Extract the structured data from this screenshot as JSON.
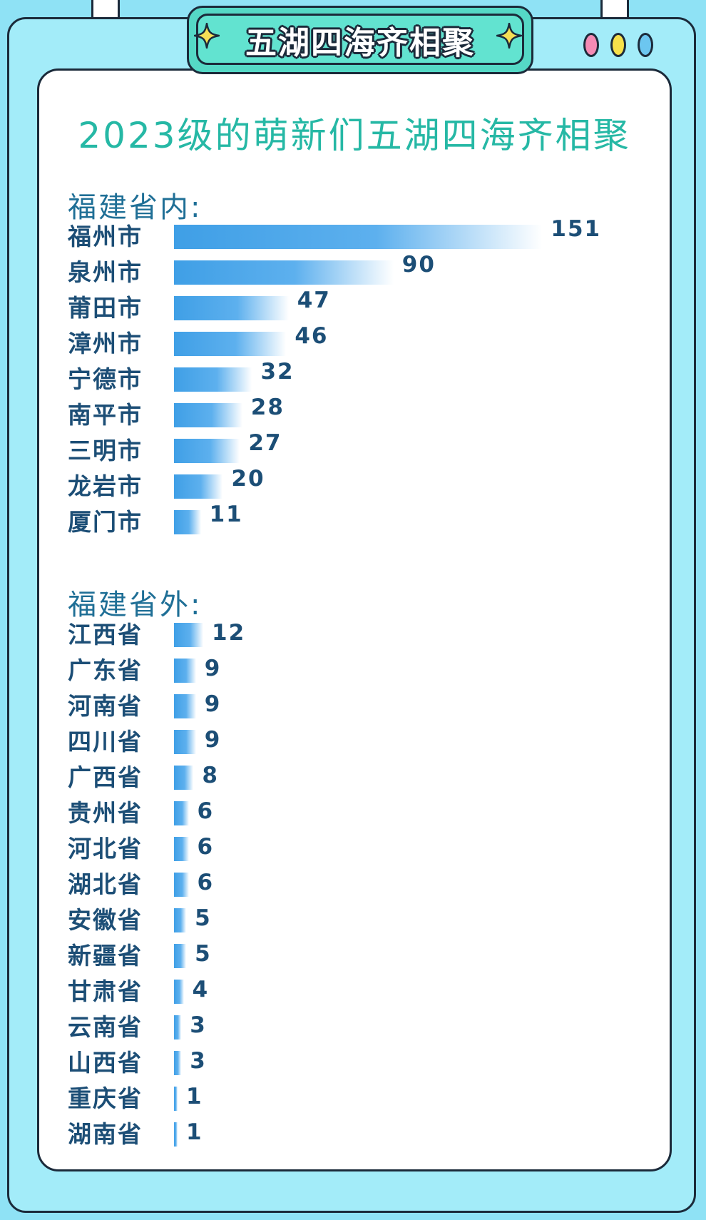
{
  "banner": {
    "title": "五湖四海齐相聚"
  },
  "header": {
    "title": "2023级的萌新们五湖四海齐相聚"
  },
  "colors": {
    "bar": "#3f9fe6",
    "accent": "#26b8a5",
    "text": "#1c4e76"
  },
  "chart_data": [
    {
      "type": "bar",
      "title": "福建省内:",
      "categories": [
        "福州市",
        "泉州市",
        "莆田市",
        "漳州市",
        "宁德市",
        "南平市",
        "三明市",
        "龙岩市",
        "厦门市"
      ],
      "values": [
        151,
        90,
        47,
        46,
        32,
        28,
        27,
        20,
        11
      ]
    },
    {
      "type": "bar",
      "title": "福建省外:",
      "categories": [
        "江西省",
        "广东省",
        "河南省",
        "四川省",
        "广西省",
        "贵州省",
        "河北省",
        "湖北省",
        "安徽省",
        "新疆省",
        "甘肃省",
        "云南省",
        "山西省",
        "重庆省",
        "湖南省"
      ],
      "values": [
        12,
        9,
        9,
        9,
        8,
        6,
        6,
        6,
        5,
        5,
        4,
        3,
        3,
        1,
        1
      ]
    }
  ]
}
